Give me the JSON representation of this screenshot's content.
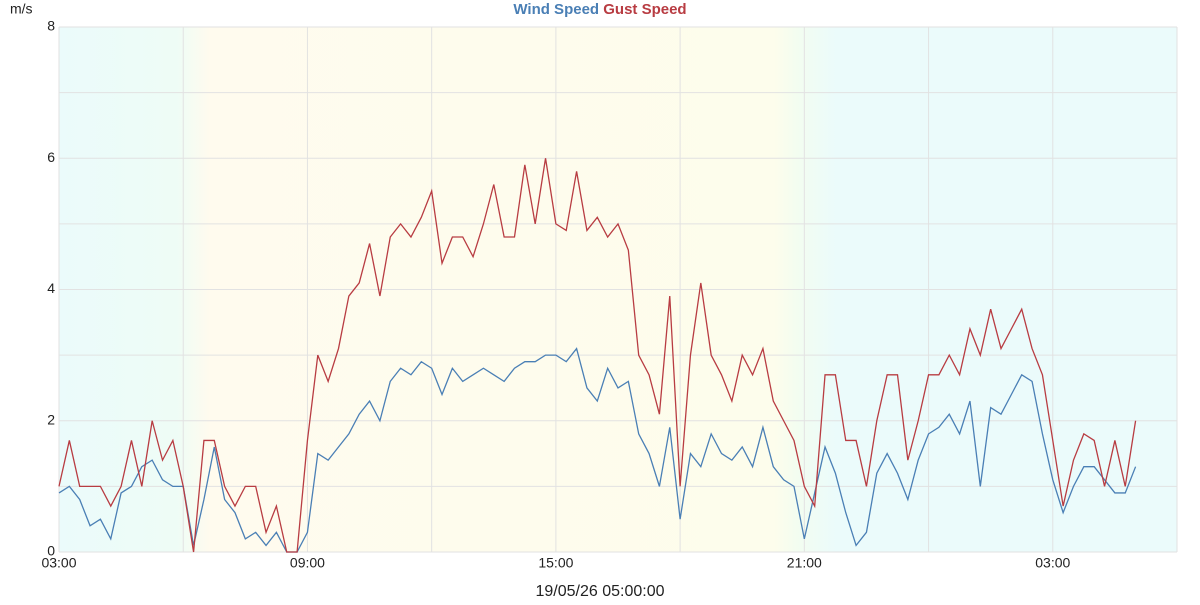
{
  "chart_data": {
    "type": "line",
    "y_label": "m/s",
    "x_label": "19/05/26 05:00:00",
    "x": [
      0,
      0.25,
      0.5,
      0.75,
      1,
      1.25,
      1.5,
      1.75,
      2,
      2.25,
      2.5,
      2.75,
      3,
      3.25,
      3.5,
      3.75,
      4,
      4.25,
      4.5,
      4.75,
      5,
      5.25,
      5.5,
      5.75,
      6,
      6.25,
      6.5,
      6.75,
      7,
      7.25,
      7.5,
      7.75,
      8,
      8.25,
      8.5,
      8.75,
      9,
      9.25,
      9.5,
      9.75,
      10,
      10.25,
      10.5,
      10.75,
      11,
      11.25,
      11.5,
      11.75,
      12,
      12.25,
      12.5,
      12.75,
      13,
      13.25,
      13.5,
      13.75,
      14,
      14.25,
      14.5,
      14.75,
      15,
      15.25,
      15.5,
      15.75,
      16,
      16.25,
      16.5,
      16.75,
      17,
      17.25,
      17.5,
      17.75,
      18,
      18.25,
      18.5,
      18.75,
      19,
      19.25,
      19.5,
      19.75,
      20,
      20.25,
      20.5,
      20.75,
      21,
      21.25,
      21.5,
      21.75,
      22,
      22.25,
      22.5,
      22.75,
      23,
      23.25,
      23.5,
      23.75,
      24,
      24.25,
      24.5,
      24.75,
      25,
      25.25,
      25.5,
      25.75,
      26
    ],
    "series": [
      {
        "name": "Wind Speed",
        "color": "#4a7fb5",
        "values": [
          0.9,
          1.0,
          0.8,
          0.4,
          0.5,
          0.2,
          0.9,
          1.0,
          1.3,
          1.4,
          1.1,
          1.0,
          1.0,
          0.1,
          0.8,
          1.6,
          0.8,
          0.6,
          0.2,
          0.3,
          0.1,
          0.3,
          0.0,
          0.0,
          0.3,
          1.5,
          1.4,
          1.6,
          1.8,
          2.1,
          2.3,
          2.0,
          2.6,
          2.8,
          2.7,
          2.9,
          2.8,
          2.4,
          2.8,
          2.6,
          2.7,
          2.8,
          2.7,
          2.6,
          2.8,
          2.9,
          2.9,
          3.0,
          3.0,
          2.9,
          3.1,
          2.5,
          2.3,
          2.8,
          2.5,
          2.6,
          1.8,
          1.5,
          1.0,
          1.9,
          0.5,
          1.5,
          1.3,
          1.8,
          1.5,
          1.4,
          1.6,
          1.3,
          1.9,
          1.3,
          1.1,
          1.0,
          0.2,
          0.9,
          1.6,
          1.2,
          0.6,
          0.1,
          0.3,
          1.2,
          1.5,
          1.2,
          0.8,
          1.4,
          1.8,
          1.9,
          2.1,
          1.8,
          2.3,
          1.0,
          2.2,
          2.1,
          2.4,
          2.7,
          2.6,
          1.8,
          1.1,
          0.6,
          1.0,
          1.3,
          1.3,
          1.1,
          0.9,
          0.9,
          1.3
        ]
      },
      {
        "name": "Gust Speed",
        "color": "#b83c42",
        "values": [
          1.0,
          1.7,
          1.0,
          1.0,
          1.0,
          0.7,
          1.0,
          1.7,
          1.0,
          2.0,
          1.4,
          1.7,
          1.0,
          0.0,
          1.7,
          1.7,
          1.0,
          0.7,
          1.0,
          1.0,
          0.3,
          0.7,
          0.0,
          0.0,
          1.7,
          3.0,
          2.6,
          3.1,
          3.9,
          4.1,
          4.7,
          3.9,
          4.8,
          5.0,
          4.8,
          5.1,
          5.5,
          4.4,
          4.8,
          4.8,
          4.5,
          5.0,
          5.6,
          4.8,
          4.8,
          5.9,
          5.0,
          6.0,
          5.0,
          4.9,
          5.8,
          4.9,
          5.1,
          4.8,
          5.0,
          4.6,
          3.0,
          2.7,
          2.1,
          3.9,
          1.0,
          3.0,
          4.1,
          3.0,
          2.7,
          2.3,
          3.0,
          2.7,
          3.1,
          2.3,
          2.0,
          1.7,
          1.0,
          0.7,
          2.7,
          2.7,
          1.7,
          1.7,
          1.0,
          2.0,
          2.7,
          2.7,
          1.4,
          2.0,
          2.7,
          2.7,
          3.0,
          2.7,
          3.4,
          3.0,
          3.7,
          3.1,
          3.4,
          3.7,
          3.1,
          2.7,
          1.7,
          0.7,
          1.4,
          1.8,
          1.7,
          1.0,
          1.7,
          1.0,
          2.0
        ]
      }
    ],
    "xlim": [
      0,
      27
    ],
    "xticks": [
      {
        "value": 0,
        "label": "03:00"
      },
      {
        "value": 6,
        "label": "09:00"
      },
      {
        "value": 12,
        "label": "15:00"
      },
      {
        "value": 18,
        "label": "21:00"
      },
      {
        "value": 24,
        "label": "03:00"
      }
    ],
    "xminorticks": [
      3,
      9,
      15,
      21,
      27
    ],
    "ylim": [
      0,
      8
    ],
    "yticks": [
      0,
      2,
      4,
      6,
      8
    ],
    "yminorticks": [
      1,
      3,
      5,
      7
    ],
    "grid": true
  }
}
